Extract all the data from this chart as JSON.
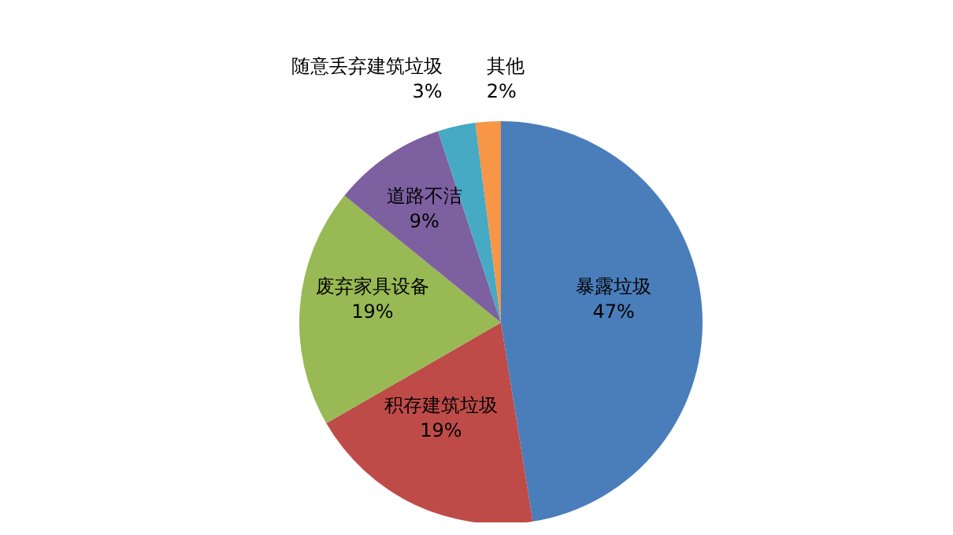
{
  "chart_data": {
    "type": "pie",
    "categories": [
      "暴露垃圾",
      "积存建筑垃圾",
      "废弃家具设备",
      "道路不洁",
      "随意丢弃建筑垃圾",
      "其他"
    ],
    "values": [
      47,
      19,
      19,
      9,
      3,
      2
    ],
    "value_labels": [
      "47%",
      "19%",
      "19%",
      "9%",
      "3%",
      "2%"
    ],
    "colors": [
      "#4a7ebb",
      "#be4b48",
      "#98b954",
      "#7d60a0",
      "#46aac5",
      "#f79646"
    ],
    "legend": false
  }
}
